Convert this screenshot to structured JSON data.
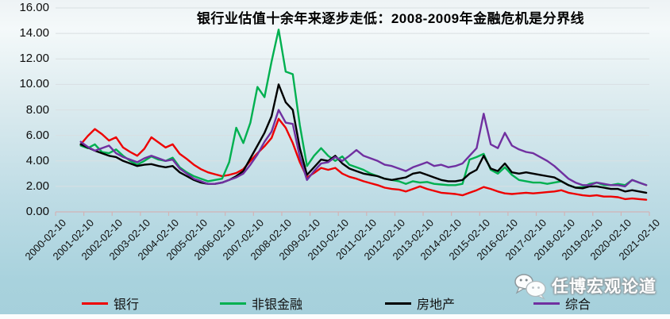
{
  "title": "银行业估值十余年来逐步走低：2008-2009年金融危机是分界线",
  "watermark": {
    "text": "任博宏观论道",
    "icon": "wechat-icon"
  },
  "colors": {
    "bank": "#ee0000",
    "nonbank_financial": "#00b050",
    "real_estate": "#000000",
    "composite": "#7030a0",
    "gridline": "#d9dfe2",
    "axis": "#d2b4b6",
    "background_top": "#eef3f5",
    "background_bottom": "#a6d0db"
  },
  "legend": {
    "items": [
      {
        "label": "银行",
        "color": "#ee0000"
      },
      {
        "label": "非银金融",
        "color": "#00b050"
      },
      {
        "label": "房地产",
        "color": "#000000"
      },
      {
        "label": "综合",
        "color": "#7030a0"
      }
    ]
  },
  "chart_data": {
    "type": "line",
    "title": "银行业估值十余年来逐步走低：2008-2009年金融危机是分界线",
    "xlabel": "",
    "ylabel": "",
    "ylim": [
      0,
      16
    ],
    "grid": "horizontal",
    "legend_position": "bottom",
    "y_ticks": [
      "16.00",
      "14.00",
      "12.00",
      "10.00",
      "8.00",
      "6.00",
      "4.00",
      "2.00",
      "0.00"
    ],
    "x_tick_labels": [
      "2000-02-10",
      "2001-02-10",
      "2002-02-10",
      "2003-02-10",
      "2004-02-10",
      "2005-02-10",
      "2006-02-10",
      "2007-02-10",
      "2008-02-10",
      "2009-02-10",
      "2010-02-10",
      "2011-02-10",
      "2012-02-10",
      "2013-02-10",
      "2014-02-10",
      "2015-02-10",
      "2016-02-10",
      "2017-02-10",
      "2018-02-10",
      "2019-02-10",
      "2020-02-10",
      "2021-02-10"
    ],
    "x_range_years": [
      2000.11,
      2021.11
    ],
    "series": [
      {
        "name": "银行",
        "key": "bank",
        "color": "#ee0000",
        "start_year": 2001.0,
        "step_years": 0.25,
        "values": [
          5.3,
          5.95,
          6.5,
          6.1,
          5.6,
          5.85,
          5.05,
          4.7,
          4.4,
          4.95,
          5.85,
          5.45,
          5.05,
          5.3,
          4.55,
          4.15,
          3.7,
          3.35,
          3.1,
          2.95,
          2.8,
          2.9,
          3.05,
          3.35,
          4.0,
          4.6,
          5.15,
          5.8,
          7.3,
          6.6,
          5.4,
          3.9,
          2.7,
          3.05,
          3.45,
          3.3,
          3.45,
          3.0,
          2.75,
          2.6,
          2.4,
          2.25,
          2.1,
          1.9,
          1.8,
          1.75,
          1.6,
          1.8,
          2.0,
          1.8,
          1.65,
          1.5,
          1.45,
          1.4,
          1.3,
          1.5,
          1.7,
          1.95,
          1.8,
          1.6,
          1.45,
          1.4,
          1.45,
          1.5,
          1.45,
          1.5,
          1.55,
          1.6,
          1.7,
          1.5,
          1.4,
          1.3,
          1.25,
          1.3,
          1.2,
          1.2,
          1.15,
          1.0,
          1.05,
          1.0,
          0.95
        ]
      },
      {
        "name": "非银金融",
        "key": "nonbank-financial",
        "color": "#00b050",
        "start_year": 2001.0,
        "step_years": 0.25,
        "values": [
          5.2,
          5.0,
          5.3,
          4.7,
          4.6,
          4.9,
          4.4,
          4.0,
          3.7,
          4.0,
          4.35,
          4.1,
          4.0,
          4.25,
          3.5,
          3.1,
          2.8,
          2.6,
          2.4,
          2.5,
          2.6,
          3.9,
          6.6,
          5.4,
          7.0,
          9.8,
          9.0,
          11.8,
          14.3,
          11.0,
          10.8,
          6.8,
          3.6,
          4.4,
          5.0,
          4.4,
          4.0,
          4.35,
          3.7,
          3.5,
          3.3,
          3.0,
          2.8,
          2.6,
          2.5,
          2.4,
          2.2,
          2.4,
          2.3,
          2.35,
          2.2,
          2.15,
          2.1,
          2.1,
          2.2,
          4.1,
          4.3,
          4.55,
          3.3,
          3.0,
          3.5,
          2.9,
          2.5,
          2.4,
          2.3,
          2.3,
          2.2,
          2.3,
          2.4,
          2.1,
          1.9,
          1.95,
          2.2,
          2.3,
          2.1,
          2.1,
          2.2,
          2.1,
          2.5,
          2.3,
          2.1
        ]
      },
      {
        "name": "房地产",
        "key": "real-estate",
        "color": "#000000",
        "start_year": 2001.0,
        "step_years": 0.25,
        "values": [
          5.3,
          5.05,
          4.8,
          4.6,
          4.4,
          4.3,
          4.0,
          3.8,
          3.6,
          3.7,
          3.75,
          3.6,
          3.5,
          3.6,
          3.1,
          2.8,
          2.5,
          2.3,
          2.2,
          2.2,
          2.3,
          2.5,
          2.8,
          3.2,
          4.2,
          5.2,
          6.2,
          7.5,
          10.0,
          8.6,
          8.0,
          5.0,
          2.9,
          3.5,
          4.1,
          4.0,
          4.4,
          3.8,
          3.4,
          3.2,
          3.0,
          2.9,
          2.8,
          2.6,
          2.5,
          2.6,
          2.7,
          3.0,
          3.1,
          2.9,
          2.7,
          2.5,
          2.4,
          2.4,
          2.5,
          3.0,
          3.3,
          4.4,
          3.4,
          3.2,
          3.8,
          3.1,
          3.0,
          3.1,
          3.0,
          2.9,
          2.8,
          2.7,
          2.4,
          2.1,
          1.9,
          1.85,
          2.0,
          2.0,
          1.9,
          1.8,
          1.8,
          1.6,
          1.7,
          1.6,
          1.5
        ]
      },
      {
        "name": "综合",
        "key": "composite",
        "color": "#7030a0",
        "start_year": 2001.0,
        "step_years": 0.25,
        "values": [
          5.5,
          5.1,
          4.8,
          5.0,
          5.2,
          4.6,
          4.3,
          4.1,
          3.9,
          4.2,
          4.4,
          4.2,
          4.0,
          4.1,
          3.4,
          3.0,
          2.6,
          2.4,
          2.2,
          2.2,
          2.3,
          2.5,
          2.7,
          3.0,
          3.7,
          4.5,
          5.5,
          6.3,
          8.0,
          7.0,
          6.9,
          4.3,
          2.5,
          3.2,
          3.8,
          3.9,
          4.3,
          4.0,
          4.4,
          4.85,
          4.4,
          4.2,
          4.0,
          3.7,
          3.6,
          3.4,
          3.2,
          3.5,
          3.7,
          3.9,
          3.6,
          3.7,
          3.5,
          3.6,
          3.8,
          4.4,
          5.0,
          7.7,
          5.3,
          5.0,
          6.2,
          5.2,
          4.9,
          4.7,
          4.6,
          4.3,
          4.0,
          3.6,
          3.1,
          2.6,
          2.3,
          2.1,
          2.1,
          2.3,
          2.2,
          2.1,
          2.1,
          2.0,
          2.5,
          2.3,
          2.1
        ]
      }
    ]
  }
}
